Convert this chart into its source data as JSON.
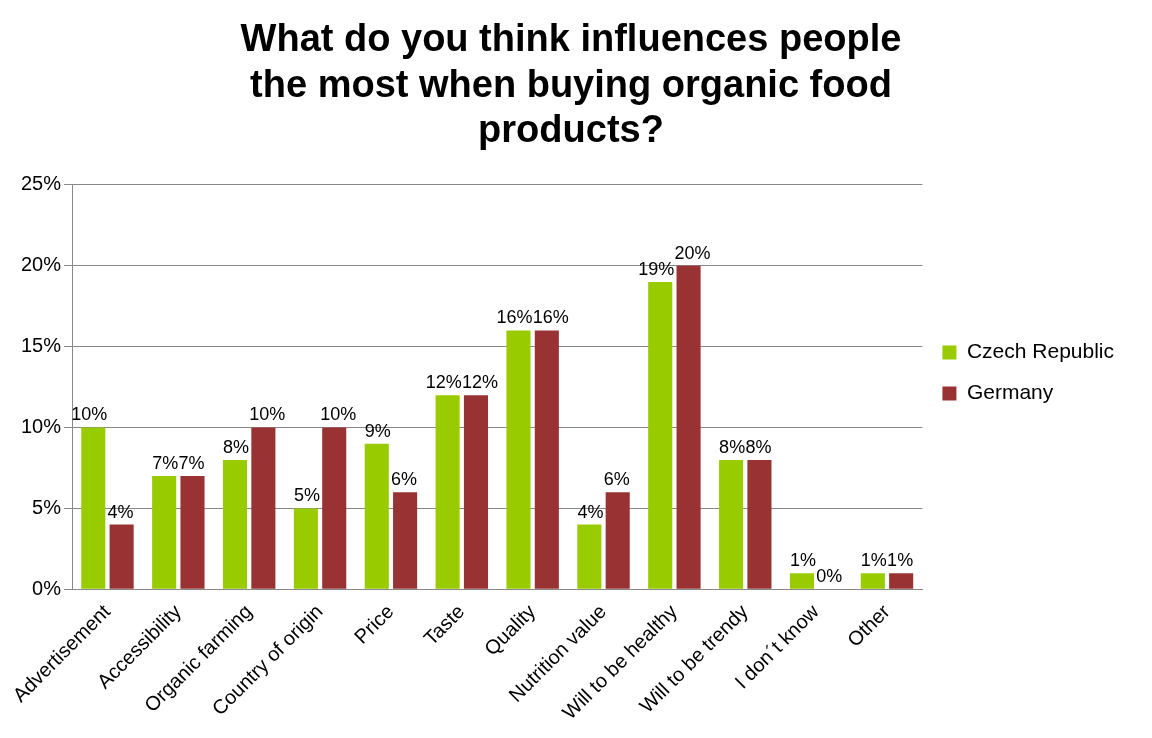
{
  "chart_data": {
    "type": "bar",
    "title": "What do you think influences people the most when buying organic food products?",
    "categories": [
      "Advertisement",
      "Accessibility",
      "Organic farming",
      "Country of origin",
      "Price",
      "Taste",
      "Quality",
      "Nutrition value",
      "Will to be healthy",
      "Will to be trendy",
      "I don´t know",
      "Other"
    ],
    "series": [
      {
        "name": "Czech Republic",
        "color": "#99cc00",
        "values": [
          10,
          7,
          8,
          5,
          9,
          12,
          16,
          4,
          19,
          8,
          1,
          1
        ],
        "value_labels": [
          "10%",
          "7%",
          "8%",
          "5%",
          "9%",
          "12%",
          "16%",
          "4%",
          "19%",
          "8%",
          "1%",
          "1%"
        ]
      },
      {
        "name": "Germany",
        "color": "#993333",
        "values": [
          4,
          7,
          10,
          10,
          6,
          12,
          16,
          6,
          20,
          8,
          0,
          1
        ],
        "value_labels": [
          "4%",
          "7%",
          "10%",
          "10%",
          "6%",
          "12%",
          "16%",
          "6%",
          "20%",
          "8%",
          "0%",
          "1%"
        ]
      }
    ],
    "ylim": [
      0,
      25
    ],
    "yticks": [
      {
        "value": 0,
        "label": "0%"
      },
      {
        "value": 5,
        "label": "5%"
      },
      {
        "value": 10,
        "label": "10%"
      },
      {
        "value": 15,
        "label": "15%"
      },
      {
        "value": 20,
        "label": "20%"
      },
      {
        "value": 25,
        "label": "25%"
      }
    ],
    "grid": "y",
    "legend": "right"
  }
}
